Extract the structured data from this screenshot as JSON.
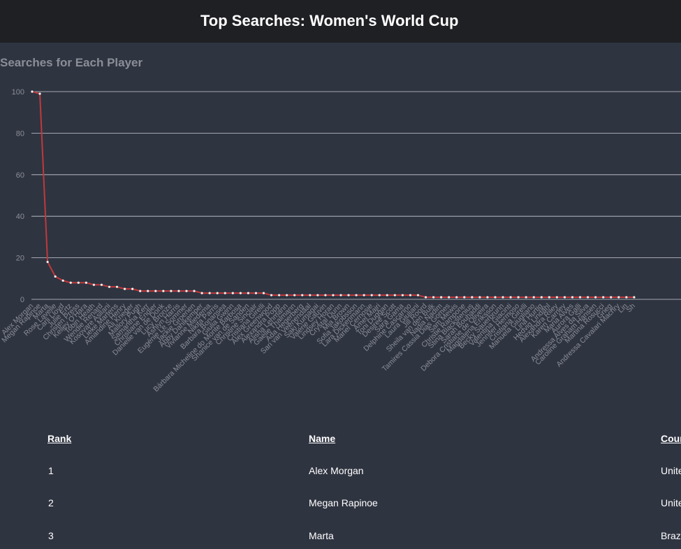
{
  "header": {
    "title": "Top Searches: Women's World Cup"
  },
  "section": {
    "title": "Searches for Each Player"
  },
  "colors": {
    "line": "#c0393b",
    "point": "#f4f4f4",
    "grid": "#c9ccd2",
    "tick": "#8a8e97"
  },
  "chart_data": {
    "type": "line",
    "ylim": [
      0,
      100
    ],
    "yticks": [
      0,
      20,
      40,
      60,
      80,
      100
    ],
    "grid": true,
    "x_tick_labels": [
      "Alex Morgan",
      "Megan Rapinoe",
      "Marta",
      "Rose Lavelle",
      "Carli Lloyd",
      "Julie Ertz",
      "Christen Press",
      "Kelley O'Hara",
      "Tobin Heath",
      "Wendie Renard",
      "Kosovare Asllani",
      "Lieke Martens",
      "Amandine Henry",
      "Ali Krieger",
      "Mallory Pugh",
      "Samantha Kerr",
      "Christiane Endler",
      "Danielle van de Donk",
      "Lucy Bronze",
      "Ashlyn Harris",
      "Eugénie Le Sommer",
      "Jackie Groenen",
      "Abby Dahlkemper",
      "Vivianne Miedema",
      "Nikita Parris",
      "Barbara Bonansea",
      "Giulia Gwinn",
      "Bárbara Micheline do Monte Barbosa",
      "Shanice van de Sanden",
      "Christine Sinclair",
      "Cristiana Girelli",
      "Alex Greenwood",
      "Alexandra Popp",
      "Alisha Lehmann",
      "Gaëlle Thalmann",
      "Ada Hegerberg",
      "Sari van Veenendaal",
      "Saki Kumagai",
      "Valérie Gauvin",
      "Lindsey Horan",
      "Crystal Dunn",
      "Mia Brown",
      "Sofia Jakobsson",
      "Lara Dickenmann",
      "Mariel Cernosie",
      "Amel Majri",
      "Toni Duggan",
      "Desiree Scott",
      "Sara Gama",
      "Delphine Cascarino",
      "Laura Giuliani",
      "Jill Roord",
      "Sheila van den Bulk",
      "Nadia Nadim",
      "Tamires Cassia Dias Gomes",
      "Sam Mewis",
      "Christie Rampone",
      "Stina Blackstenius",
      "Sarah Bouhaddi",
      "Debora Cristiane de Oliveira",
      "Magdalena Eriksson",
      "Becky Sauerbrunn",
      "Valentina Giacinti",
      "Jennifer Hermoso",
      "Cristiana Girelli",
      "Manuela Giugliano",
      "Lina Hurtig",
      "Hedvig Lindahl",
      "Alexandra Riley",
      "Karen Carney",
      "Maria Alves",
      "Aurora Galli",
      "Andressa Alves da Silva",
      "Caroline Graham Hansen",
      "Martina Rosucci",
      "Grieg",
      "Andressa Cavalari Machry",
      "Lin",
      "Sh"
    ],
    "x": [
      "Alex Morgan",
      "Megan Rapinoe",
      "Marta",
      "Rose Lavelle",
      "Carli Lloyd",
      "Julie Ertz",
      "Christen Press",
      "Kelley O'Hara",
      "Tobin Heath",
      "Wendie Renard",
      "Kosovare Asllani",
      "Lieke Martens",
      "Amandine Henry",
      "Ali Krieger",
      "Mallory Pugh",
      "Samantha Kerr",
      "Christiane Endler",
      "Danielle van de Donk",
      "Lucy Bronze",
      "Ashlyn Harris",
      "Eugénie Le Sommer",
      "Jackie Groenen",
      "Abby Dahlkemper",
      "Vivianne Miedema",
      "Nikita Parris",
      "Barbara Bonansea",
      "Giulia Gwinn",
      "Bárbara Micheline do Monte Barbosa",
      "Shanice van de Sanden",
      "Christine Sinclair",
      "Cristiana Girelli",
      "Alex Greenwood",
      "Alexandra Popp",
      "Alisha Lehmann",
      "Gaëlle Thalmann",
      "Ada Hegerberg",
      "Sari van Veenendaal",
      "Saki Kumagai",
      "Valérie Gauvin",
      "Lindsey Horan",
      "Crystal Dunn",
      "Mia Brown",
      "Sofia Jakobsson",
      "Lara Dickenmann",
      "Mariel Cernosie",
      "Amel Majri",
      "Toni Duggan",
      "Desiree Scott",
      "Sara Gama",
      "Delphine Cascarino",
      "Laura Giuliani",
      "Jill Roord",
      "Sheila van den Bulk",
      "Nadia Nadim",
      "Tamires Cassia Dias Gomes",
      "Sam Mewis",
      "Christie Rampone",
      "Stina Blackstenius",
      "Sarah Bouhaddi",
      "Debora Cristiane de Oliveira",
      "Magdalena Eriksson",
      "Becky Sauerbrunn",
      "Valentina Giacinti",
      "Jennifer Hermoso",
      "Cristiana Girelli",
      "Manuela Giugliano",
      "Lina Hurtig",
      "Hedvig Lindahl",
      "Alexandra Riley",
      "Karen Carney",
      "Maria Alves",
      "Aurora Galli",
      "Andressa Alves da Silva",
      "Caroline Graham Hansen",
      "Martina Rosucci",
      "Grieg",
      "Andressa Cavalari Machry",
      "Lin",
      "Sh"
    ],
    "y": [
      100,
      99,
      18,
      11,
      9,
      8,
      8,
      8,
      7,
      7,
      6,
      6,
      5,
      5,
      4,
      4,
      4,
      4,
      4,
      4,
      4,
      4,
      3,
      3,
      3,
      3,
      3,
      3,
      3,
      3,
      3,
      2,
      2,
      2,
      2,
      2,
      2,
      2,
      2,
      2,
      2,
      2,
      2,
      2,
      2,
      2,
      2,
      2,
      2,
      2,
      2,
      1,
      1,
      1,
      1,
      1,
      1,
      1,
      1,
      1,
      1,
      1,
      1,
      1,
      1,
      1,
      1,
      1,
      1,
      1,
      1,
      1,
      1,
      1,
      1,
      1,
      1,
      1,
      1
    ]
  },
  "table": {
    "headers": [
      "Rank",
      "Name",
      "Cour"
    ],
    "rows": [
      [
        "1",
        "Alex Morgan",
        "Unite"
      ],
      [
        "2",
        "Megan Rapinoe",
        "Unite"
      ],
      [
        "3",
        "Marta",
        "Brazi"
      ]
    ]
  }
}
